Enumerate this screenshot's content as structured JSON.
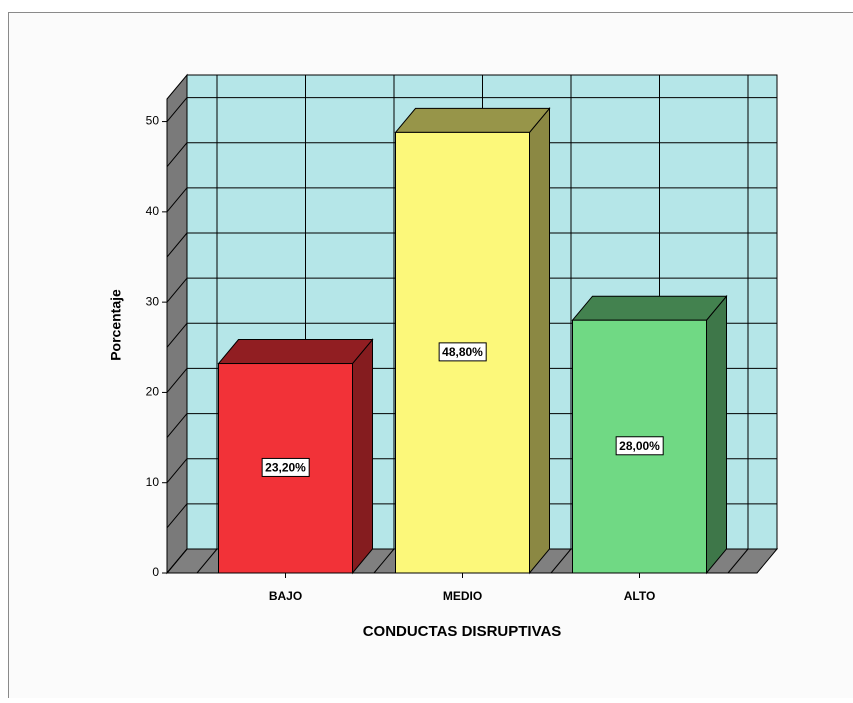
{
  "chart_data": {
    "type": "bar3d",
    "x_label": "CONDUCTAS DISRUPTIVAS",
    "y_label": "Porcentaje",
    "categories": [
      "BAJO",
      "MEDIO",
      "ALTO"
    ],
    "values": [
      23.2,
      48.8,
      28.0
    ],
    "value_labels": [
      "23,20%",
      "48,80%",
      "28,00%"
    ],
    "colors": [
      "#f23238",
      "#fcf87a",
      "#70d984"
    ],
    "ylim": [
      0,
      52.5
    ],
    "yticks": [
      0,
      10,
      20,
      30,
      40,
      50
    ],
    "minor_yticks": [
      5,
      15,
      25,
      35,
      45
    ],
    "grid": true
  }
}
